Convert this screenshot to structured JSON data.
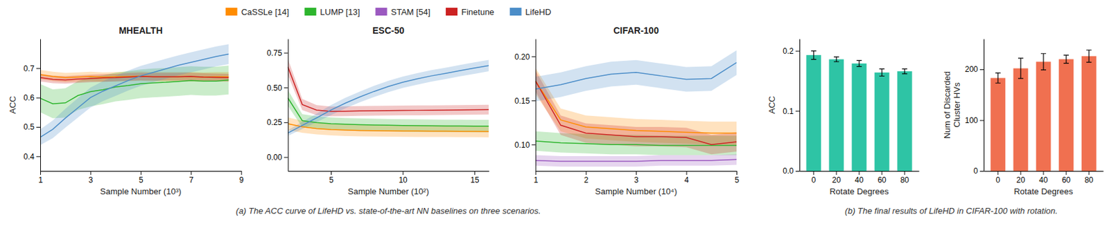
{
  "chart_data": [
    {
      "type": "line",
      "title": "MHEALTH",
      "xlabel": "Sample Number (10³)",
      "ylabel": "ACC",
      "xlim": [
        1,
        9
      ],
      "ylim": [
        0.35,
        0.8
      ],
      "xticks": [
        1,
        3,
        5,
        7,
        9
      ],
      "yticks": [
        0.4,
        0.5,
        0.6,
        0.7
      ],
      "x": [
        1.0,
        1.5,
        2.0,
        2.5,
        3.0,
        3.5,
        4.0,
        4.5,
        5.0,
        5.5,
        6.0,
        6.5,
        7.0,
        7.5,
        8.0,
        8.5
      ],
      "series": [
        {
          "name": "CaSSLe [14]",
          "color": "#FF8C00",
          "values": [
            0.678,
            0.672,
            0.668,
            0.67,
            0.672,
            0.67,
            0.671,
            0.672,
            0.673,
            0.671,
            0.671,
            0.671,
            0.671,
            0.67,
            0.671,
            0.671
          ],
          "lower": [
            0.662,
            0.656,
            0.652,
            0.654,
            0.656,
            0.654,
            0.655,
            0.656,
            0.657,
            0.655,
            0.655,
            0.655,
            0.655,
            0.654,
            0.655,
            0.655
          ],
          "upper": [
            0.694,
            0.688,
            0.684,
            0.686,
            0.688,
            0.686,
            0.687,
            0.688,
            0.689,
            0.687,
            0.687,
            0.687,
            0.687,
            0.686,
            0.687,
            0.687
          ]
        },
        {
          "name": "LUMP [13]",
          "color": "#2DB52D",
          "values": [
            0.598,
            0.579,
            0.582,
            0.607,
            0.62,
            0.627,
            0.636,
            0.641,
            0.647,
            0.65,
            0.652,
            0.655,
            0.658,
            0.656,
            0.656,
            0.66
          ],
          "lower": [
            0.55,
            0.53,
            0.532,
            0.558,
            0.57,
            0.578,
            0.587,
            0.592,
            0.598,
            0.601,
            0.603,
            0.606,
            0.609,
            0.607,
            0.607,
            0.611
          ],
          "upper": [
            0.646,
            0.628,
            0.632,
            0.656,
            0.67,
            0.676,
            0.685,
            0.69,
            0.696,
            0.699,
            0.701,
            0.704,
            0.707,
            0.705,
            0.705,
            0.709
          ]
        },
        {
          "name": "Finetune",
          "color": "#CC2222",
          "values": [
            0.668,
            0.662,
            0.66,
            0.663,
            0.665,
            0.667,
            0.668,
            0.67,
            0.672,
            0.671,
            0.671,
            0.671,
            0.672,
            0.67,
            0.669,
            0.668
          ],
          "lower": [
            0.655,
            0.649,
            0.647,
            0.65,
            0.652,
            0.654,
            0.655,
            0.657,
            0.659,
            0.658,
            0.658,
            0.658,
            0.659,
            0.657,
            0.656,
            0.655
          ],
          "upper": [
            0.681,
            0.675,
            0.673,
            0.676,
            0.678,
            0.68,
            0.681,
            0.683,
            0.685,
            0.684,
            0.684,
            0.684,
            0.685,
            0.683,
            0.682,
            0.681
          ]
        },
        {
          "name": "LifeHD",
          "color": "#4B8DC8",
          "values": [
            0.465,
            0.492,
            0.53,
            0.565,
            0.6,
            0.622,
            0.64,
            0.658,
            0.674,
            0.686,
            0.698,
            0.71,
            0.72,
            0.73,
            0.74,
            0.748
          ],
          "lower": [
            0.438,
            0.462,
            0.498,
            0.532,
            0.566,
            0.588,
            0.606,
            0.624,
            0.64,
            0.652,
            0.664,
            0.676,
            0.686,
            0.696,
            0.706,
            0.714
          ],
          "upper": [
            0.492,
            0.522,
            0.562,
            0.598,
            0.634,
            0.656,
            0.674,
            0.692,
            0.708,
            0.72,
            0.732,
            0.744,
            0.754,
            0.764,
            0.774,
            0.782
          ]
        }
      ],
      "annotations": [
        "(a) The ACC curve of LifeHD vs. state-of-the-art NN baselines on three scenarios."
      ]
    },
    {
      "type": "line",
      "title": "ESC-50",
      "xlabel": "Sample Number (10²)",
      "xlim": [
        2,
        16
      ],
      "ylim": [
        -0.1,
        0.85
      ],
      "xticks": [
        5,
        10,
        15
      ],
      "yticks": [
        {
          "value": 0,
          "label": "0.00"
        },
        0.25,
        {
          "value": 0.5,
          "label": "0.50"
        },
        0.75
      ],
      "x": [
        2,
        3,
        4,
        5,
        6,
        7,
        8,
        9,
        10,
        11,
        12,
        13,
        14,
        15,
        16
      ],
      "series": [
        {
          "name": "CaSSLe [14]",
          "color": "#FF8C00",
          "values": [
            0.24,
            0.218,
            0.205,
            0.198,
            0.194,
            0.191,
            0.19,
            0.189,
            0.188,
            0.187,
            0.186,
            0.186,
            0.185,
            0.185,
            0.184
          ],
          "lower": [
            0.195,
            0.175,
            0.163,
            0.156,
            0.152,
            0.149,
            0.148,
            0.147,
            0.146,
            0.145,
            0.144,
            0.144,
            0.143,
            0.143,
            0.142
          ],
          "upper": [
            0.285,
            0.261,
            0.247,
            0.24,
            0.236,
            0.233,
            0.232,
            0.231,
            0.23,
            0.229,
            0.228,
            0.228,
            0.227,
            0.227,
            0.226
          ]
        },
        {
          "name": "LUMP [13]",
          "color": "#2DB52D",
          "values": [
            0.425,
            0.262,
            0.248,
            0.24,
            0.236,
            0.233,
            0.231,
            0.229,
            0.227,
            0.226,
            0.225,
            0.224,
            0.224,
            0.223,
            0.223
          ],
          "lower": [
            0.368,
            0.215,
            0.202,
            0.195,
            0.191,
            0.188,
            0.186,
            0.184,
            0.182,
            0.181,
            0.18,
            0.179,
            0.179,
            0.178,
            0.178
          ],
          "upper": [
            0.482,
            0.309,
            0.294,
            0.285,
            0.281,
            0.278,
            0.276,
            0.274,
            0.272,
            0.271,
            0.27,
            0.269,
            0.269,
            0.268,
            0.268
          ]
        },
        {
          "name": "Finetune",
          "color": "#CC2222",
          "values": [
            0.648,
            0.378,
            0.338,
            0.328,
            0.33,
            0.332,
            0.333,
            0.334,
            0.335,
            0.336,
            0.337,
            0.338,
            0.339,
            0.34,
            0.341
          ],
          "lower": [
            0.59,
            0.338,
            0.302,
            0.293,
            0.295,
            0.297,
            0.298,
            0.299,
            0.3,
            0.301,
            0.302,
            0.303,
            0.304,
            0.305,
            0.306
          ],
          "upper": [
            0.706,
            0.418,
            0.374,
            0.363,
            0.365,
            0.367,
            0.368,
            0.369,
            0.37,
            0.371,
            0.372,
            0.373,
            0.374,
            0.375,
            0.376
          ]
        },
        {
          "name": "LifeHD",
          "color": "#4B8DC8",
          "values": [
            0.173,
            0.228,
            0.282,
            0.338,
            0.388,
            0.432,
            0.472,
            0.508,
            0.538,
            0.562,
            0.584,
            0.602,
            0.622,
            0.64,
            0.658
          ],
          "lower": [
            0.153,
            0.202,
            0.252,
            0.302,
            0.35,
            0.394,
            0.432,
            0.467,
            0.497,
            0.521,
            0.543,
            0.561,
            0.581,
            0.599,
            0.617
          ],
          "upper": [
            0.193,
            0.254,
            0.312,
            0.374,
            0.426,
            0.47,
            0.512,
            0.549,
            0.579,
            0.603,
            0.625,
            0.643,
            0.663,
            0.681,
            0.699
          ]
        }
      ]
    },
    {
      "type": "line",
      "title": "CIFAR-100",
      "xlabel": "Sample Number (10⁴)",
      "xlim": [
        1,
        5
      ],
      "ylim": [
        0.07,
        0.22
      ],
      "xticks": [
        1,
        2,
        3,
        4,
        5
      ],
      "yticks": [
        {
          "value": 0.1,
          "label": "0.10"
        },
        0.15,
        {
          "value": 0.2,
          "label": "0.20"
        }
      ],
      "legend": "top",
      "x": [
        1.0,
        1.5,
        2.0,
        2.5,
        3.0,
        3.5,
        4.0,
        4.5,
        5.0
      ],
      "series": [
        {
          "name": "CaSSLe [14]",
          "color": "#FF8C00",
          "values": [
            0.172,
            0.128,
            0.12,
            0.118,
            0.116,
            0.115,
            0.114,
            0.113,
            0.113
          ],
          "lower": [
            0.157,
            0.115,
            0.107,
            0.105,
            0.103,
            0.102,
            0.101,
            0.1,
            0.1
          ],
          "upper": [
            0.187,
            0.141,
            0.133,
            0.131,
            0.129,
            0.128,
            0.127,
            0.126,
            0.126
          ]
        },
        {
          "name": "LUMP [13]",
          "color": "#2DB52D",
          "values": [
            0.104,
            0.102,
            0.101,
            0.1,
            0.1,
            0.099,
            0.099,
            0.099,
            0.099
          ],
          "lower": [
            0.093,
            0.091,
            0.09,
            0.089,
            0.089,
            0.088,
            0.088,
            0.088,
            0.088
          ],
          "upper": [
            0.115,
            0.113,
            0.112,
            0.111,
            0.111,
            0.11,
            0.11,
            0.11,
            0.11
          ]
        },
        {
          "name": "STAM [54]",
          "color": "#9B59C0",
          "values": [
            0.082,
            0.081,
            0.081,
            0.081,
            0.081,
            0.082,
            0.082,
            0.082,
            0.083
          ],
          "lower": [
            0.076,
            0.075,
            0.075,
            0.075,
            0.075,
            0.076,
            0.076,
            0.076,
            0.077
          ],
          "upper": [
            0.088,
            0.087,
            0.087,
            0.087,
            0.087,
            0.088,
            0.088,
            0.088,
            0.089
          ]
        },
        {
          "name": "Finetune",
          "color": "#CC2222",
          "values": [
            0.172,
            0.122,
            0.113,
            0.111,
            0.109,
            0.109,
            0.108,
            0.1,
            0.103
          ],
          "lower": [
            0.16,
            0.111,
            0.102,
            0.1,
            0.098,
            0.098,
            0.097,
            0.089,
            0.092
          ],
          "upper": [
            0.184,
            0.133,
            0.124,
            0.122,
            0.12,
            0.12,
            0.119,
            0.111,
            0.114
          ]
        },
        {
          "name": "LifeHD",
          "color": "#4B8DC8",
          "values": [
            0.163,
            0.168,
            0.175,
            0.18,
            0.182,
            0.178,
            0.174,
            0.175,
            0.193
          ],
          "lower": [
            0.149,
            0.154,
            0.161,
            0.166,
            0.168,
            0.164,
            0.16,
            0.161,
            0.179
          ],
          "upper": [
            0.177,
            0.182,
            0.189,
            0.194,
            0.196,
            0.192,
            0.188,
            0.189,
            0.207
          ]
        }
      ]
    },
    {
      "type": "bar",
      "xlabel": "Rotate Degrees",
      "ylabel": "ACC",
      "categories": [
        "0",
        "20",
        "40",
        "60",
        "80"
      ],
      "values": [
        0.193,
        0.186,
        0.179,
        0.164,
        0.166
      ],
      "errors": [
        0.007,
        0.004,
        0.005,
        0.006,
        0.004
      ],
      "color": "#2EC4A5",
      "ylim": [
        0,
        0.22
      ],
      "yticks": [
        {
          "value": 0,
          "label": "0.0"
        },
        0.1,
        0.2
      ],
      "annotations": [
        "(b) The final results of LifeHD in CIFAR-100 with rotation."
      ]
    },
    {
      "type": "bar",
      "xlabel": "Rotate Degrees",
      "ylabel": "Num of Discarded\nCluster HVs",
      "categories": [
        "0",
        "20",
        "40",
        "60",
        "80"
      ],
      "values": [
        183,
        202,
        215,
        220,
        226
      ],
      "errors": [
        10,
        20,
        16,
        8,
        12
      ],
      "color": "#F07050",
      "ylim": [
        0,
        260
      ],
      "yticks": [
        0,
        100,
        200
      ]
    }
  ]
}
